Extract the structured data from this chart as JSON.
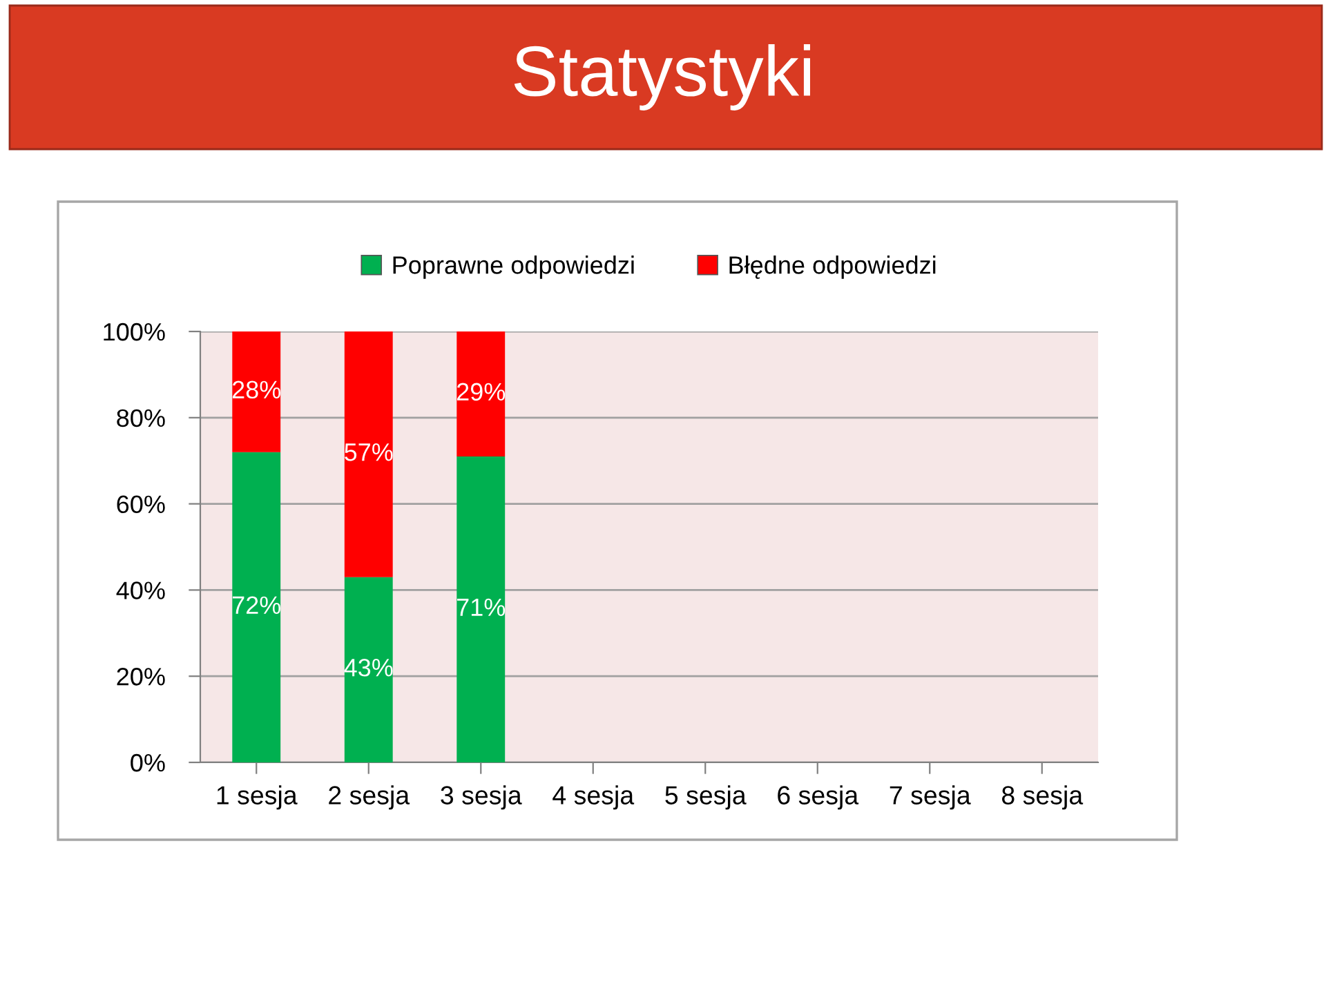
{
  "chart_data": {
    "type": "bar",
    "title": "Statystyki",
    "categories": [
      "1 sesja",
      "2 sesja",
      "3 sesja",
      "4 sesja",
      "5 sesja",
      "6 sesja",
      "7 sesja",
      "8 sesja"
    ],
    "stacked": true,
    "series": [
      {
        "name": "Poprawne odpowiedzi",
        "color": "#00b050",
        "values": [
          72,
          43,
          71,
          null,
          null,
          null,
          null,
          null
        ],
        "value_labels": [
          "72%",
          "43%",
          "71%",
          null,
          null,
          null,
          null,
          null
        ]
      },
      {
        "name": "Błędne odpowiedzi",
        "color": "#ff0000",
        "values": [
          28,
          57,
          29,
          null,
          null,
          null,
          null,
          null
        ],
        "value_labels": [
          "28%",
          "57%",
          "29%",
          null,
          null,
          null,
          null,
          null
        ]
      }
    ],
    "ylim": [
      0,
      100
    ],
    "yticks": [
      {
        "value": 0,
        "label": "0%"
      },
      {
        "value": 20,
        "label": "20%"
      },
      {
        "value": 40,
        "label": "40%"
      },
      {
        "value": 60,
        "label": "60%"
      },
      {
        "value": 80,
        "label": "80%"
      },
      {
        "value": 100,
        "label": "100%"
      }
    ],
    "grid": "y",
    "legend": "top"
  }
}
